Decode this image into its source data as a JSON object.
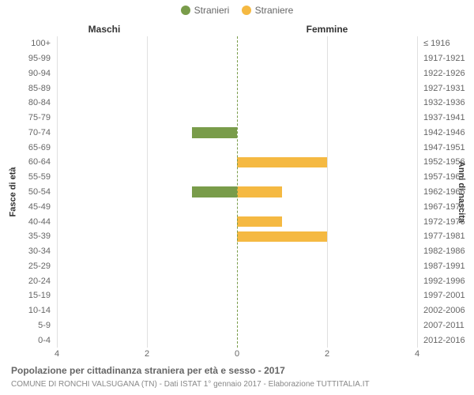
{
  "chart": {
    "type": "population-pyramid",
    "background_color": "#ffffff",
    "grid_color": "#e0e0e0",
    "text_color": "#666666",
    "center_line_color": "#799c4a",
    "xlim": 4,
    "xtick_step": 2,
    "legend": {
      "items": [
        {
          "label": "Stranieri",
          "color": "#799c4a"
        },
        {
          "label": "Straniere",
          "color": "#f5b942"
        }
      ]
    },
    "headers": {
      "male": "Maschi",
      "female": "Femmine"
    },
    "yaxis_left_title": "Fasce di età",
    "yaxis_right_title": "Anni di nascita",
    "age_bands": [
      {
        "age": "100+",
        "years": "≤ 1916",
        "male": 0,
        "female": 0
      },
      {
        "age": "95-99",
        "years": "1917-1921",
        "male": 0,
        "female": 0
      },
      {
        "age": "90-94",
        "years": "1922-1926",
        "male": 0,
        "female": 0
      },
      {
        "age": "85-89",
        "years": "1927-1931",
        "male": 0,
        "female": 0
      },
      {
        "age": "80-84",
        "years": "1932-1936",
        "male": 0,
        "female": 0
      },
      {
        "age": "75-79",
        "years": "1937-1941",
        "male": 0,
        "female": 0
      },
      {
        "age": "70-74",
        "years": "1942-1946",
        "male": 1,
        "female": 0
      },
      {
        "age": "65-69",
        "years": "1947-1951",
        "male": 0,
        "female": 0
      },
      {
        "age": "60-64",
        "years": "1952-1956",
        "male": 0,
        "female": 2
      },
      {
        "age": "55-59",
        "years": "1957-1961",
        "male": 0,
        "female": 0
      },
      {
        "age": "50-54",
        "years": "1962-1966",
        "male": 1,
        "female": 1
      },
      {
        "age": "45-49",
        "years": "1967-1971",
        "male": 0,
        "female": 0
      },
      {
        "age": "40-44",
        "years": "1972-1976",
        "male": 0,
        "female": 1
      },
      {
        "age": "35-39",
        "years": "1977-1981",
        "male": 0,
        "female": 2
      },
      {
        "age": "30-34",
        "years": "1982-1986",
        "male": 0,
        "female": 0
      },
      {
        "age": "25-29",
        "years": "1987-1991",
        "male": 0,
        "female": 0
      },
      {
        "age": "20-24",
        "years": "1992-1996",
        "male": 0,
        "female": 0
      },
      {
        "age": "15-19",
        "years": "1997-2001",
        "male": 0,
        "female": 0
      },
      {
        "age": "10-14",
        "years": "2002-2006",
        "male": 0,
        "female": 0
      },
      {
        "age": "5-9",
        "years": "2007-2011",
        "male": 0,
        "female": 0
      },
      {
        "age": "0-4",
        "years": "2012-2016",
        "male": 0,
        "female": 0
      }
    ],
    "x_ticks_left": [
      4,
      2,
      0
    ],
    "x_ticks_right": [
      2,
      4
    ],
    "title": "Popolazione per cittadinanza straniera per età e sesso - 2017",
    "subtitle": "COMUNE DI RONCHI VALSUGANA (TN) - Dati ISTAT 1° gennaio 2017 - Elaborazione TUTTITALIA.IT"
  }
}
